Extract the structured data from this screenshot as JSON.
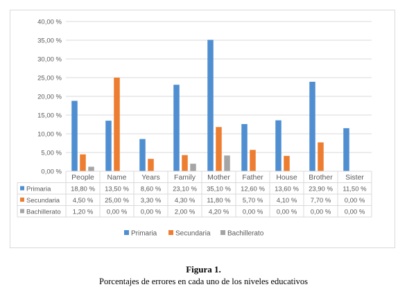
{
  "figure": {
    "label": "Figura 1.",
    "caption": "Porcentajes de errores en cada uno de los niveles educativos"
  },
  "chart_data": {
    "type": "bar",
    "categories": [
      "People",
      "Name",
      "Years",
      "Family",
      "Mother",
      "Father",
      "House",
      "Brother",
      "Sister"
    ],
    "series": [
      {
        "name": "Primaria",
        "color": "#4f8ed1",
        "values": [
          18.8,
          13.5,
          8.6,
          23.1,
          35.1,
          12.6,
          13.6,
          23.9,
          11.5
        ],
        "labels": [
          "18,80 %",
          "13,50 %",
          "8,60 %",
          "23,10 %",
          "35,10 %",
          "12,60 %",
          "13,60 %",
          "23,90 %",
          "11,50 %"
        ]
      },
      {
        "name": "Secundaria",
        "color": "#ed7d31",
        "values": [
          4.5,
          25.0,
          3.3,
          4.3,
          11.8,
          5.7,
          4.1,
          7.7,
          0.0
        ],
        "labels": [
          "4,50 %",
          "25,00 %",
          "3,30 %",
          "4,30 %",
          "11,80 %",
          "5,70 %",
          "4,10 %",
          "7,70 %",
          "0,00 %"
        ]
      },
      {
        "name": "Bachillerato",
        "color": "#a5a5a5",
        "values": [
          1.2,
          0.0,
          0.0,
          2.0,
          4.2,
          0.0,
          0.0,
          0.0,
          0.0
        ],
        "labels": [
          "1,20 %",
          "0,00 %",
          "0,00 %",
          "2,00 %",
          "4,20 %",
          "0,00 %",
          "0,00 %",
          "0,00 %",
          "0,00 %"
        ]
      }
    ],
    "y_ticks": [
      0,
      5,
      10,
      15,
      20,
      25,
      30,
      35,
      40
    ],
    "y_tick_labels": [
      "0,00 %",
      "5,00 %",
      "10,00 %",
      "15,00 %",
      "20,00 %",
      "25,00 %",
      "30,00 %",
      "35,00 %",
      "40,00 %"
    ],
    "ylim": [
      0,
      40
    ],
    "grid": true,
    "data_table": true,
    "legend_position": "bottom"
  }
}
